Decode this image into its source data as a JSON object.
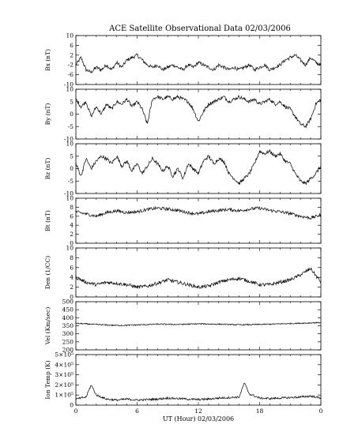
{
  "title": "ACE Satellite Observational Data   02/03/2006",
  "x_axis": {
    "label": "UT (Hour)   02/03/2006",
    "ticks": [
      "0",
      "6",
      "12",
      "18",
      "0"
    ]
  },
  "panels": [
    {
      "id": "bx",
      "ylabel": "Bx (nT)",
      "ticks": [
        "10",
        "6",
        "2",
        "-2",
        "-6",
        "-10"
      ]
    },
    {
      "id": "by",
      "ylabel": "By (nT)",
      "ticks": [
        "10",
        "5",
        "0",
        "-5",
        "-10"
      ]
    },
    {
      "id": "bz",
      "ylabel": "Bz (nT)",
      "ticks": [
        "10",
        "5",
        "0",
        "-5",
        "-10"
      ]
    },
    {
      "id": "bt",
      "ylabel": "Bt (nT)",
      "ticks": [
        "10",
        "8",
        "6",
        "4",
        "2",
        "0"
      ]
    },
    {
      "id": "den",
      "ylabel": "Den (1/CC)",
      "ticks": [
        "10",
        "8",
        "6",
        "4",
        "2",
        "0"
      ]
    },
    {
      "id": "vel",
      "ylabel": "Vel (Km/sec)",
      "ticks": [
        "500",
        "450",
        "400",
        "350",
        "300",
        "250",
        "200"
      ]
    },
    {
      "id": "temp",
      "ylabel": "Ion Temp (K)",
      "ticks": [
        "5×10⁵",
        "4×10⁵",
        "3×10⁵",
        "2×10⁵",
        "1×10⁵",
        "0"
      ]
    }
  ],
  "chart_data": [
    {
      "type": "line",
      "name": "Bx",
      "ylabel": "Bx (nT)",
      "ylim": [
        -10,
        10
      ],
      "xlim": [
        0,
        24
      ],
      "points": [
        [
          0,
          -2
        ],
        [
          0.5,
          1
        ],
        [
          1,
          -4
        ],
        [
          1.5,
          -5
        ],
        [
          2,
          -3
        ],
        [
          2.5,
          -4
        ],
        [
          3,
          -2
        ],
        [
          3.5,
          -4
        ],
        [
          4,
          -1
        ],
        [
          4.5,
          -3
        ],
        [
          5,
          0
        ],
        [
          5.5,
          1
        ],
        [
          6,
          2
        ],
        [
          6.5,
          0
        ],
        [
          7,
          -2
        ],
        [
          7.5,
          -3
        ],
        [
          8,
          -2
        ],
        [
          8.5,
          -4
        ],
        [
          9,
          -3
        ],
        [
          9.5,
          -2
        ],
        [
          10,
          -3
        ],
        [
          10.5,
          -4
        ],
        [
          11,
          -2
        ],
        [
          11.5,
          -3
        ],
        [
          12,
          -1
        ],
        [
          12.5,
          -2
        ],
        [
          13,
          -3
        ],
        [
          13.5,
          -4
        ],
        [
          14,
          -2
        ],
        [
          14.5,
          -3
        ],
        [
          15,
          -4
        ],
        [
          15.5,
          -3
        ],
        [
          16,
          -4
        ],
        [
          16.5,
          -3
        ],
        [
          17,
          -2
        ],
        [
          17.5,
          -4
        ],
        [
          18,
          -3
        ],
        [
          18.5,
          -2
        ],
        [
          19,
          -4
        ],
        [
          19.5,
          -3
        ],
        [
          20,
          -2
        ],
        [
          20.5,
          0
        ],
        [
          21,
          1
        ],
        [
          21.5,
          2
        ],
        [
          22,
          0
        ],
        [
          22.5,
          -2
        ],
        [
          23,
          1
        ],
        [
          23.5,
          -1
        ],
        [
          24,
          -2
        ]
      ]
    },
    {
      "type": "line",
      "name": "By",
      "ylabel": "By (nT)",
      "ylim": [
        -10,
        10
      ],
      "xlim": [
        0,
        24
      ],
      "points": [
        [
          0,
          6
        ],
        [
          0.5,
          3
        ],
        [
          1,
          5
        ],
        [
          1.5,
          -1
        ],
        [
          2,
          3
        ],
        [
          2.5,
          0
        ],
        [
          3,
          4
        ],
        [
          3.5,
          2
        ],
        [
          4,
          5
        ],
        [
          4.5,
          4
        ],
        [
          5,
          6
        ],
        [
          5.5,
          3
        ],
        [
          6,
          5
        ],
        [
          6.5,
          2
        ],
        [
          7,
          -4
        ],
        [
          7.5,
          6
        ],
        [
          8,
          7
        ],
        [
          8.5,
          6
        ],
        [
          9,
          7
        ],
        [
          9.5,
          6
        ],
        [
          10,
          7
        ],
        [
          10.5,
          6
        ],
        [
          11,
          5
        ],
        [
          11.5,
          2
        ],
        [
          12,
          -3
        ],
        [
          12.5,
          1
        ],
        [
          13,
          4
        ],
        [
          13.5,
          5
        ],
        [
          14,
          6
        ],
        [
          14.5,
          7
        ],
        [
          15,
          5
        ],
        [
          15.5,
          6
        ],
        [
          16,
          7
        ],
        [
          16.5,
          6
        ],
        [
          17,
          5
        ],
        [
          17.5,
          6
        ],
        [
          18,
          4
        ],
        [
          18.5,
          5
        ],
        [
          19,
          6
        ],
        [
          19.5,
          4
        ],
        [
          20,
          5
        ],
        [
          20.5,
          3
        ],
        [
          21,
          2
        ],
        [
          21.5,
          -1
        ],
        [
          22,
          -4
        ],
        [
          22.5,
          -5
        ],
        [
          23,
          -2
        ],
        [
          23.5,
          4
        ],
        [
          24,
          6
        ]
      ]
    },
    {
      "type": "line",
      "name": "Bz",
      "ylabel": "Bz (nT)",
      "ylim": [
        -10,
        10
      ],
      "xlim": [
        0,
        24
      ],
      "points": [
        [
          0,
          2
        ],
        [
          0.5,
          -3
        ],
        [
          1,
          4
        ],
        [
          1.5,
          0
        ],
        [
          2,
          3
        ],
        [
          2.5,
          5
        ],
        [
          3,
          4
        ],
        [
          3.5,
          2
        ],
        [
          4,
          5
        ],
        [
          4.5,
          1
        ],
        [
          5,
          3
        ],
        [
          5.5,
          -1
        ],
        [
          6,
          2
        ],
        [
          6.5,
          -2
        ],
        [
          7,
          1
        ],
        [
          7.5,
          4
        ],
        [
          8,
          2
        ],
        [
          8.5,
          -1
        ],
        [
          9,
          1
        ],
        [
          9.5,
          -3
        ],
        [
          10,
          0
        ],
        [
          10.5,
          -4
        ],
        [
          11,
          2
        ],
        [
          11.5,
          0
        ],
        [
          12,
          -2
        ],
        [
          12.5,
          3
        ],
        [
          13,
          5
        ],
        [
          13.5,
          2
        ],
        [
          14,
          4
        ],
        [
          14.5,
          3
        ],
        [
          15,
          -2
        ],
        [
          15.5,
          -4
        ],
        [
          16,
          -6
        ],
        [
          16.5,
          -4
        ],
        [
          17,
          -2
        ],
        [
          17.5,
          2
        ],
        [
          18,
          7
        ],
        [
          18.5,
          6
        ],
        [
          19,
          7
        ],
        [
          19.5,
          5
        ],
        [
          20,
          6
        ],
        [
          20.5,
          3
        ],
        [
          21,
          2
        ],
        [
          21.5,
          -2
        ],
        [
          22,
          -5
        ],
        [
          22.5,
          -6
        ],
        [
          23,
          -4
        ],
        [
          23.5,
          -2
        ],
        [
          24,
          1
        ]
      ]
    },
    {
      "type": "line",
      "name": "Bt",
      "ylabel": "Bt (nT)",
      "ylim": [
        0,
        10
      ],
      "xlim": [
        0,
        24
      ],
      "points": [
        [
          0,
          7
        ],
        [
          1,
          6.5
        ],
        [
          2,
          6
        ],
        [
          3,
          6.8
        ],
        [
          4,
          7.2
        ],
        [
          5,
          6.8
        ],
        [
          6,
          7
        ],
        [
          7,
          7.5
        ],
        [
          8,
          7.8
        ],
        [
          9,
          7.6
        ],
        [
          10,
          7.3
        ],
        [
          11,
          6.8
        ],
        [
          12,
          6.5
        ],
        [
          13,
          7
        ],
        [
          14,
          7.3
        ],
        [
          15,
          7.5
        ],
        [
          16,
          7.2
        ],
        [
          17,
          7.6
        ],
        [
          18,
          7.8
        ],
        [
          19,
          7.3
        ],
        [
          20,
          7
        ],
        [
          21,
          6.6
        ],
        [
          22,
          6
        ],
        [
          23,
          5.6
        ],
        [
          24,
          6.3
        ]
      ]
    },
    {
      "type": "line",
      "name": "Den",
      "ylabel": "Den (1/CC)",
      "ylim": [
        0,
        10
      ],
      "xlim": [
        0,
        24
      ],
      "points": [
        [
          0,
          4
        ],
        [
          1,
          3
        ],
        [
          2,
          2.5
        ],
        [
          3,
          3
        ],
        [
          4,
          2.8
        ],
        [
          5,
          2.5
        ],
        [
          6,
          2
        ],
        [
          7,
          2.2
        ],
        [
          8,
          2.8
        ],
        [
          9,
          3.5
        ],
        [
          10,
          3
        ],
        [
          11,
          2.5
        ],
        [
          12,
          2
        ],
        [
          13,
          2.2
        ],
        [
          14,
          3
        ],
        [
          15,
          3.5
        ],
        [
          16,
          3.8
        ],
        [
          17,
          3.2
        ],
        [
          18,
          2.5
        ],
        [
          19,
          2.5
        ],
        [
          20,
          3
        ],
        [
          21,
          3.5
        ],
        [
          22,
          4.5
        ],
        [
          23,
          5.8
        ],
        [
          24,
          3
        ]
      ]
    },
    {
      "type": "line",
      "name": "Vel",
      "ylabel": "Vel (Km/sec)",
      "ylim": [
        200,
        500
      ],
      "xlim": [
        0,
        24
      ],
      "points": [
        [
          0,
          365
        ],
        [
          2,
          358
        ],
        [
          4,
          352
        ],
        [
          6,
          355
        ],
        [
          8,
          360
        ],
        [
          10,
          358
        ],
        [
          12,
          362
        ],
        [
          14,
          360
        ],
        [
          16,
          356
        ],
        [
          18,
          358
        ],
        [
          20,
          362
        ],
        [
          22,
          366
        ],
        [
          24,
          370
        ]
      ]
    },
    {
      "type": "line",
      "name": "Ion Temp",
      "ylabel": "Ion Temp (K)",
      "ylim": [
        0,
        500000
      ],
      "xlim": [
        0,
        24
      ],
      "points": [
        [
          0,
          60000
        ],
        [
          1,
          80000
        ],
        [
          1.5,
          200000
        ],
        [
          2,
          100000
        ],
        [
          3,
          60000
        ],
        [
          4,
          50000
        ],
        [
          5,
          60000
        ],
        [
          6,
          50000
        ],
        [
          7,
          55000
        ],
        [
          8,
          60000
        ],
        [
          9,
          70000
        ],
        [
          10,
          65000
        ],
        [
          11,
          60000
        ],
        [
          12,
          55000
        ],
        [
          13,
          60000
        ],
        [
          14,
          70000
        ],
        [
          15,
          75000
        ],
        [
          16,
          80000
        ],
        [
          16.5,
          220000
        ],
        [
          17,
          110000
        ],
        [
          18,
          70000
        ],
        [
          19,
          65000
        ],
        [
          20,
          70000
        ],
        [
          21,
          75000
        ],
        [
          22,
          80000
        ],
        [
          23,
          90000
        ],
        [
          24,
          70000
        ]
      ]
    }
  ]
}
